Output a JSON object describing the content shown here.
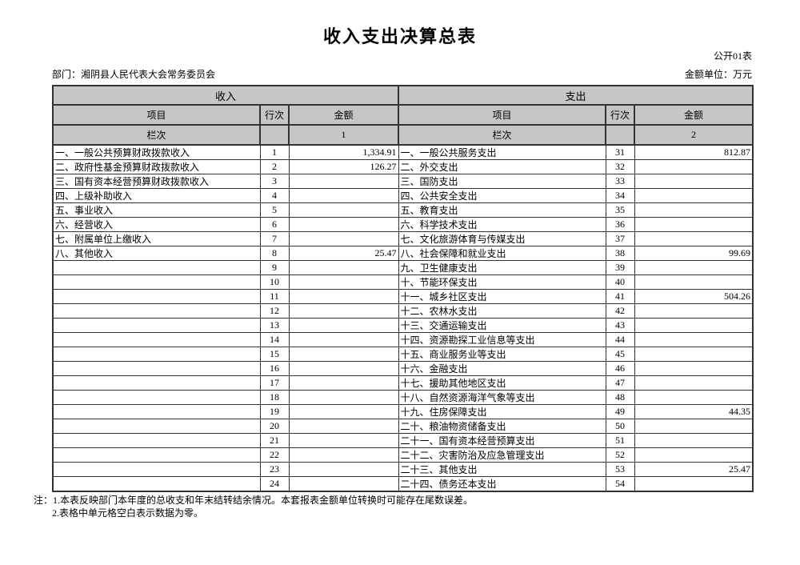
{
  "header": {
    "title": "收入支出决算总表",
    "form_code": "公开01表",
    "department": "部门：湘阴县人民代表大会常务委员会",
    "unit": "金额单位：万元"
  },
  "table": {
    "income_section": "收入",
    "expense_section": "支出",
    "col_item": "项目",
    "col_line": "行次",
    "col_amount": "金额",
    "lanci_label": "栏次",
    "income_col_no": "1",
    "expense_col_no": "2",
    "rows": [
      {
        "income": {
          "item": "一、一般公共预算财政拨款收入",
          "line": "1",
          "amount": "1,334.91"
        },
        "expense": {
          "item": "一、一般公共服务支出",
          "line": "31",
          "amount": "812.87"
        }
      },
      {
        "income": {
          "item": "二、政府性基金预算财政拨款收入",
          "line": "2",
          "amount": "126.27"
        },
        "expense": {
          "item": "二、外交支出",
          "line": "32",
          "amount": ""
        }
      },
      {
        "income": {
          "item": "三、国有资本经营预算财政拨款收入",
          "line": "3",
          "amount": ""
        },
        "expense": {
          "item": "三、国防支出",
          "line": "33",
          "amount": ""
        }
      },
      {
        "income": {
          "item": "四、上级补助收入",
          "line": "4",
          "amount": ""
        },
        "expense": {
          "item": "四、公共安全支出",
          "line": "34",
          "amount": ""
        }
      },
      {
        "income": {
          "item": "五、事业收入",
          "line": "5",
          "amount": ""
        },
        "expense": {
          "item": "五、教育支出",
          "line": "35",
          "amount": ""
        }
      },
      {
        "income": {
          "item": "六、经营收入",
          "line": "6",
          "amount": ""
        },
        "expense": {
          "item": "六、科学技术支出",
          "line": "36",
          "amount": ""
        }
      },
      {
        "income": {
          "item": "七、附属单位上缴收入",
          "line": "7",
          "amount": ""
        },
        "expense": {
          "item": "七、文化旅游体育与传媒支出",
          "line": "37",
          "amount": ""
        }
      },
      {
        "income": {
          "item": "八、其他收入",
          "line": "8",
          "amount": "25.47"
        },
        "expense": {
          "item": "八、社会保障和就业支出",
          "line": "38",
          "amount": "99.69"
        }
      },
      {
        "income": {
          "item": "",
          "line": "9",
          "amount": ""
        },
        "expense": {
          "item": "九、卫生健康支出",
          "line": "39",
          "amount": ""
        }
      },
      {
        "income": {
          "item": "",
          "line": "10",
          "amount": ""
        },
        "expense": {
          "item": "十、节能环保支出",
          "line": "40",
          "amount": ""
        }
      },
      {
        "income": {
          "item": "",
          "line": "11",
          "amount": ""
        },
        "expense": {
          "item": "十一、城乡社区支出",
          "line": "41",
          "amount": "504.26"
        }
      },
      {
        "income": {
          "item": "",
          "line": "12",
          "amount": ""
        },
        "expense": {
          "item": "十二、农林水支出",
          "line": "42",
          "amount": ""
        }
      },
      {
        "income": {
          "item": "",
          "line": "13",
          "amount": ""
        },
        "expense": {
          "item": "十三、交通运输支出",
          "line": "43",
          "amount": ""
        }
      },
      {
        "income": {
          "item": "",
          "line": "14",
          "amount": ""
        },
        "expense": {
          "item": "十四、资源勘探工业信息等支出",
          "line": "44",
          "amount": ""
        }
      },
      {
        "income": {
          "item": "",
          "line": "15",
          "amount": ""
        },
        "expense": {
          "item": "十五、商业服务业等支出",
          "line": "45",
          "amount": ""
        }
      },
      {
        "income": {
          "item": "",
          "line": "16",
          "amount": ""
        },
        "expense": {
          "item": "十六、金融支出",
          "line": "46",
          "amount": ""
        }
      },
      {
        "income": {
          "item": "",
          "line": "17",
          "amount": ""
        },
        "expense": {
          "item": "十七、援助其他地区支出",
          "line": "47",
          "amount": ""
        }
      },
      {
        "income": {
          "item": "",
          "line": "18",
          "amount": ""
        },
        "expense": {
          "item": "十八、自然资源海洋气象等支出",
          "line": "48",
          "amount": ""
        }
      },
      {
        "income": {
          "item": "",
          "line": "19",
          "amount": ""
        },
        "expense": {
          "item": "十九、住房保障支出",
          "line": "49",
          "amount": "44.35"
        }
      },
      {
        "income": {
          "item": "",
          "line": "20",
          "amount": ""
        },
        "expense": {
          "item": "二十、粮油物资储备支出",
          "line": "50",
          "amount": ""
        }
      },
      {
        "income": {
          "item": "",
          "line": "21",
          "amount": ""
        },
        "expense": {
          "item": "二十一、国有资本经营预算支出",
          "line": "51",
          "amount": ""
        }
      },
      {
        "income": {
          "item": "",
          "line": "22",
          "amount": ""
        },
        "expense": {
          "item": "二十二、灾害防治及应急管理支出",
          "line": "52",
          "amount": ""
        }
      },
      {
        "income": {
          "item": "",
          "line": "23",
          "amount": ""
        },
        "expense": {
          "item": "二十三、其他支出",
          "line": "53",
          "amount": "25.47"
        }
      },
      {
        "income": {
          "item": "",
          "line": "24",
          "amount": ""
        },
        "expense": {
          "item": "二十四、债务还本支出",
          "line": "54",
          "amount": ""
        }
      }
    ]
  },
  "notes": [
    "注：1.本表反映部门本年度的总收支和年末结转结余情况。本套报表金额单位转换时可能存在尾数误差。",
    "2.表格中单元格空白表示数据为零。"
  ]
}
